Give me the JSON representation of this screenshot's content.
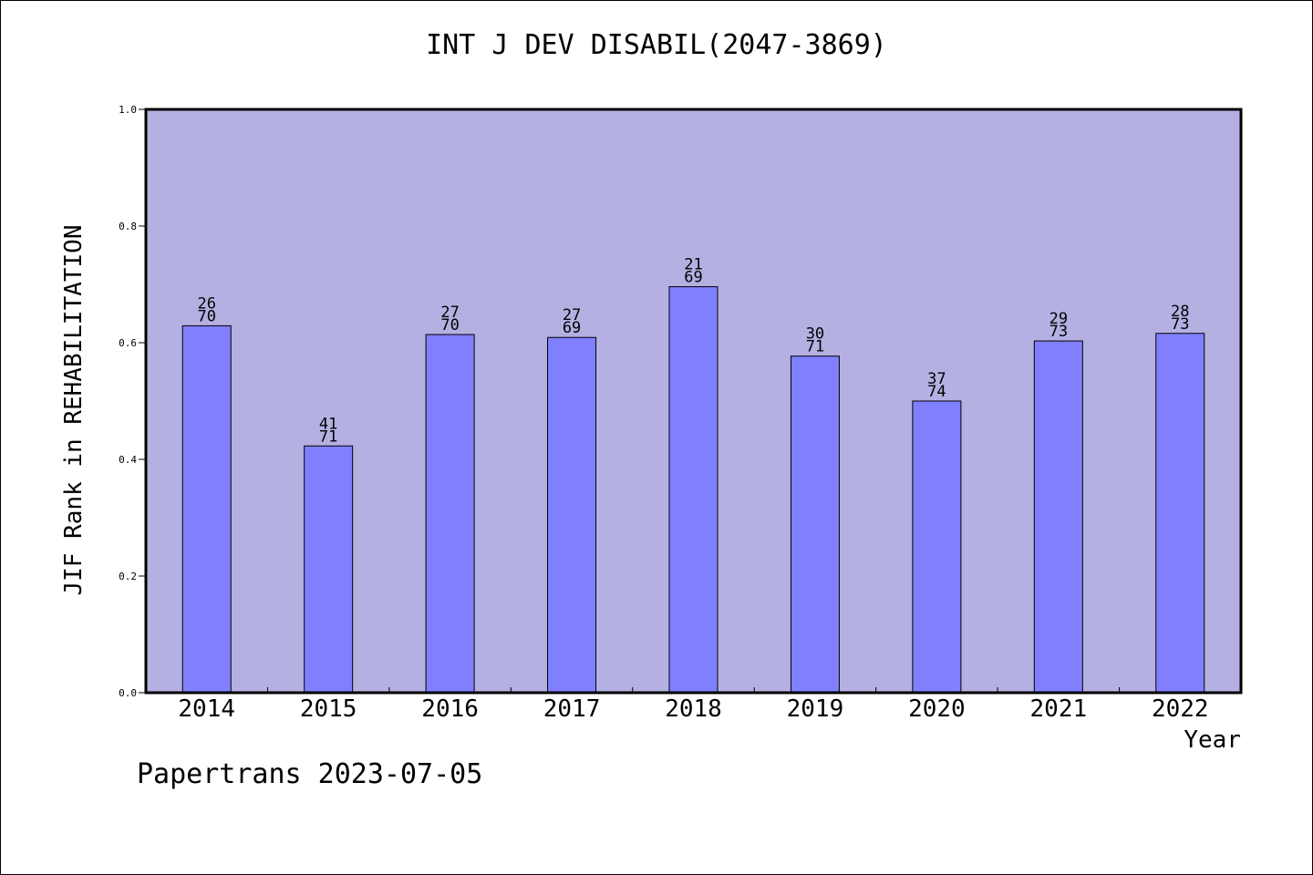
{
  "footer": "Papertrans 2023-07-05",
  "colors": {
    "plot_background": "#b5b0e2",
    "bar_fill": "#8080ff",
    "bar_stroke": "#000000"
  },
  "chart_data": {
    "type": "bar",
    "title": "INT J DEV DISABIL(2047-3869)",
    "xlabel": "Year",
    "ylabel": "JIF Rank in REHABILITATION",
    "ylim": [
      0,
      1.0
    ],
    "yticks": [
      "0.0",
      "0.2",
      "0.4",
      "0.6",
      "0.8",
      "1.0"
    ],
    "grid": false,
    "categories": [
      "2014",
      "2015",
      "2016",
      "2017",
      "2018",
      "2019",
      "2020",
      "2021",
      "2022"
    ],
    "values": [
      0.629,
      0.423,
      0.614,
      0.609,
      0.696,
      0.577,
      0.5,
      0.603,
      0.616
    ],
    "rank": [
      "26",
      "41",
      "27",
      "27",
      "21",
      "30",
      "37",
      "29",
      "28"
    ],
    "total": [
      "70",
      "71",
      "70",
      "69",
      "69",
      "71",
      "74",
      "73",
      "73"
    ]
  }
}
